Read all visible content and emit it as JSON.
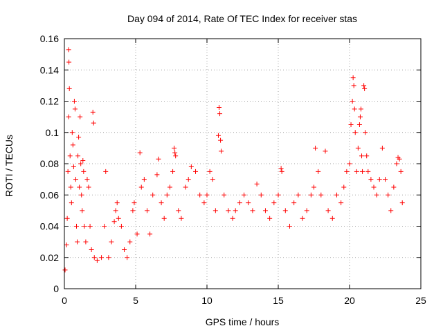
{
  "chart_data": {
    "type": "scatter",
    "title": "Day 094 of 2014, Rate Of TEC Index for receiver stas",
    "xlabel": "GPS time / hours",
    "ylabel": "ROTI / TECUs",
    "xlim": [
      0,
      25
    ],
    "ylim": [
      0,
      0.16
    ],
    "grid": true,
    "marker": "+",
    "marker_color": "#ff0000",
    "x_ticks": [
      0,
      5,
      10,
      15,
      20,
      25
    ],
    "x_tick_labels": [
      "0",
      "5",
      "10",
      "15",
      "20",
      "25"
    ],
    "y_ticks": [
      0,
      0.02,
      0.04,
      0.06,
      0.08,
      0.1,
      0.12,
      0.14,
      0.16
    ],
    "y_tick_labels": [
      "0",
      "0.02",
      "0.04",
      "0.06",
      "0.08",
      "0.1",
      "0.12",
      "0.14",
      "0.16"
    ],
    "series": [
      {
        "name": "stas",
        "points": [
          [
            0.05,
            0.012
          ],
          [
            0.15,
            0.028
          ],
          [
            0.2,
            0.045
          ],
          [
            0.25,
            0.075
          ],
          [
            0.3,
            0.11
          ],
          [
            0.3,
            0.153
          ],
          [
            0.32,
            0.145
          ],
          [
            0.35,
            0.128
          ],
          [
            0.4,
            0.085
          ],
          [
            0.45,
            0.065
          ],
          [
            0.5,
            0.055
          ],
          [
            0.55,
            0.1
          ],
          [
            0.6,
            0.092
          ],
          [
            0.65,
            0.078
          ],
          [
            0.7,
            0.12
          ],
          [
            0.75,
            0.115
          ],
          [
            0.8,
            0.07
          ],
          [
            0.85,
            0.04
          ],
          [
            0.9,
            0.03
          ],
          [
            0.95,
            0.085
          ],
          [
            1.0,
            0.097
          ],
          [
            1.05,
            0.065
          ],
          [
            1.1,
            0.11
          ],
          [
            1.15,
            0.08
          ],
          [
            1.2,
            0.06
          ],
          [
            1.25,
            0.05
          ],
          [
            1.3,
            0.082
          ],
          [
            1.35,
            0.075
          ],
          [
            1.4,
            0.04
          ],
          [
            1.5,
            0.03
          ],
          [
            1.6,
            0.07
          ],
          [
            1.7,
            0.065
          ],
          [
            1.8,
            0.04
          ],
          [
            1.9,
            0.025
          ],
          [
            2.0,
            0.113
          ],
          [
            2.05,
            0.106
          ],
          [
            2.1,
            0.02
          ],
          [
            2.3,
            0.018
          ],
          [
            2.6,
            0.02
          ],
          [
            2.8,
            0.04
          ],
          [
            2.9,
            0.075
          ],
          [
            3.1,
            0.02
          ],
          [
            3.3,
            0.03
          ],
          [
            3.5,
            0.043
          ],
          [
            3.6,
            0.05
          ],
          [
            3.7,
            0.055
          ],
          [
            3.8,
            0.045
          ],
          [
            4.0,
            0.04
          ],
          [
            4.2,
            0.025
          ],
          [
            4.4,
            0.02
          ],
          [
            4.6,
            0.03
          ],
          [
            4.8,
            0.05
          ],
          [
            4.9,
            0.055
          ],
          [
            5.1,
            0.035
          ],
          [
            5.3,
            0.087
          ],
          [
            5.4,
            0.065
          ],
          [
            5.6,
            0.07
          ],
          [
            5.8,
            0.05
          ],
          [
            6.0,
            0.035
          ],
          [
            6.2,
            0.06
          ],
          [
            6.5,
            0.073
          ],
          [
            6.6,
            0.083
          ],
          [
            6.8,
            0.055
          ],
          [
            7.0,
            0.045
          ],
          [
            7.2,
            0.06
          ],
          [
            7.4,
            0.065
          ],
          [
            7.6,
            0.075
          ],
          [
            7.7,
            0.09
          ],
          [
            7.75,
            0.087
          ],
          [
            7.8,
            0.085
          ],
          [
            8.0,
            0.05
          ],
          [
            8.2,
            0.045
          ],
          [
            8.5,
            0.065
          ],
          [
            8.7,
            0.07
          ],
          [
            8.9,
            0.078
          ],
          [
            9.2,
            0.075
          ],
          [
            9.5,
            0.06
          ],
          [
            9.8,
            0.055
          ],
          [
            10.0,
            0.06
          ],
          [
            10.2,
            0.075
          ],
          [
            10.4,
            0.07
          ],
          [
            10.6,
            0.05
          ],
          [
            10.8,
            0.098
          ],
          [
            10.85,
            0.116
          ],
          [
            10.9,
            0.112
          ],
          [
            10.95,
            0.095
          ],
          [
            11.0,
            0.088
          ],
          [
            11.2,
            0.06
          ],
          [
            11.5,
            0.05
          ],
          [
            11.8,
            0.045
          ],
          [
            12.0,
            0.05
          ],
          [
            12.3,
            0.055
          ],
          [
            12.6,
            0.06
          ],
          [
            12.9,
            0.055
          ],
          [
            13.2,
            0.05
          ],
          [
            13.5,
            0.067
          ],
          [
            13.8,
            0.06
          ],
          [
            14.1,
            0.05
          ],
          [
            14.4,
            0.045
          ],
          [
            14.7,
            0.055
          ],
          [
            15.0,
            0.06
          ],
          [
            15.2,
            0.077
          ],
          [
            15.25,
            0.075
          ],
          [
            15.5,
            0.05
          ],
          [
            15.8,
            0.04
          ],
          [
            16.1,
            0.055
          ],
          [
            16.4,
            0.06
          ],
          [
            16.7,
            0.045
          ],
          [
            17.0,
            0.05
          ],
          [
            17.3,
            0.06
          ],
          [
            17.5,
            0.065
          ],
          [
            17.6,
            0.09
          ],
          [
            17.8,
            0.075
          ],
          [
            18.0,
            0.06
          ],
          [
            18.3,
            0.088
          ],
          [
            18.5,
            0.05
          ],
          [
            18.8,
            0.045
          ],
          [
            19.1,
            0.06
          ],
          [
            19.4,
            0.055
          ],
          [
            19.6,
            0.065
          ],
          [
            19.8,
            0.075
          ],
          [
            20.0,
            0.08
          ],
          [
            20.1,
            0.105
          ],
          [
            20.2,
            0.12
          ],
          [
            20.25,
            0.135
          ],
          [
            20.3,
            0.13
          ],
          [
            20.35,
            0.115
          ],
          [
            20.4,
            0.1
          ],
          [
            20.5,
            0.075
          ],
          [
            20.6,
            0.09
          ],
          [
            20.7,
            0.105
          ],
          [
            20.75,
            0.11
          ],
          [
            20.8,
            0.115
          ],
          [
            20.85,
            0.085
          ],
          [
            20.9,
            0.075
          ],
          [
            21.0,
            0.13
          ],
          [
            21.05,
            0.128
          ],
          [
            21.1,
            0.1
          ],
          [
            21.2,
            0.085
          ],
          [
            21.3,
            0.075
          ],
          [
            21.5,
            0.07
          ],
          [
            21.7,
            0.065
          ],
          [
            21.9,
            0.06
          ],
          [
            22.1,
            0.07
          ],
          [
            22.3,
            0.09
          ],
          [
            22.5,
            0.07
          ],
          [
            22.7,
            0.06
          ],
          [
            22.9,
            0.05
          ],
          [
            23.1,
            0.065
          ],
          [
            23.3,
            0.08
          ],
          [
            23.4,
            0.084
          ],
          [
            23.5,
            0.083
          ],
          [
            23.6,
            0.075
          ],
          [
            23.7,
            0.055
          ]
        ]
      }
    ]
  }
}
